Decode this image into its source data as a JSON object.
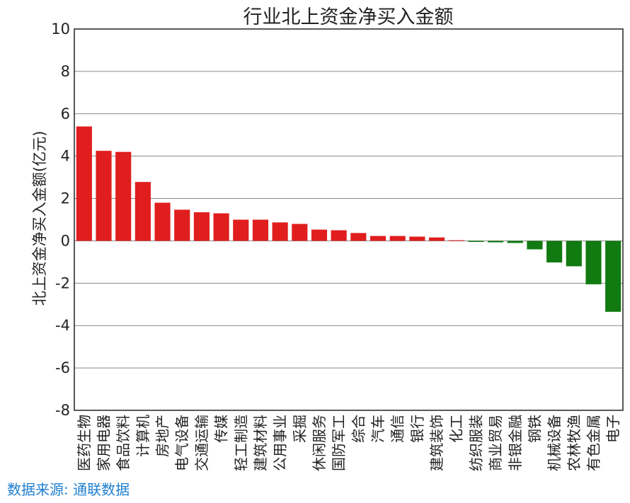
{
  "chart_data": {
    "type": "bar",
    "title": "行业北上资金净买入金额",
    "ylabel": "北上资金净买入金额(亿元)",
    "xlabel": "",
    "ylim": [
      -8,
      10
    ],
    "yticks": [
      -8,
      -6,
      -4,
      -2,
      0,
      2,
      4,
      6,
      8,
      10
    ],
    "grid": "horizontal",
    "positive_color": "#e01e1e",
    "negative_color": "#117a11",
    "categories": [
      "医药生物",
      "家用电器",
      "食品饮料",
      "计算机",
      "房地产",
      "电气设备",
      "交通运输",
      "传媒",
      "轻工制造",
      "建筑材料",
      "公用事业",
      "采掘",
      "休闲服务",
      "国防军工",
      "综合",
      "汽车",
      "通信",
      "银行",
      "建筑装饰",
      "化工",
      "纺织服装",
      "商业贸易",
      "非银金融",
      "钢铁",
      "机械设备",
      "农林牧渔",
      "有色金属",
      "电子"
    ],
    "values": [
      5.4,
      4.25,
      4.2,
      2.78,
      1.8,
      1.47,
      1.35,
      1.3,
      1.0,
      1.0,
      0.87,
      0.8,
      0.53,
      0.5,
      0.37,
      0.23,
      0.23,
      0.2,
      0.16,
      0.03,
      -0.05,
      -0.07,
      -0.1,
      -0.4,
      -1.02,
      -1.2,
      -2.05,
      -3.35
    ]
  },
  "source": "数据来源: 通联数据"
}
